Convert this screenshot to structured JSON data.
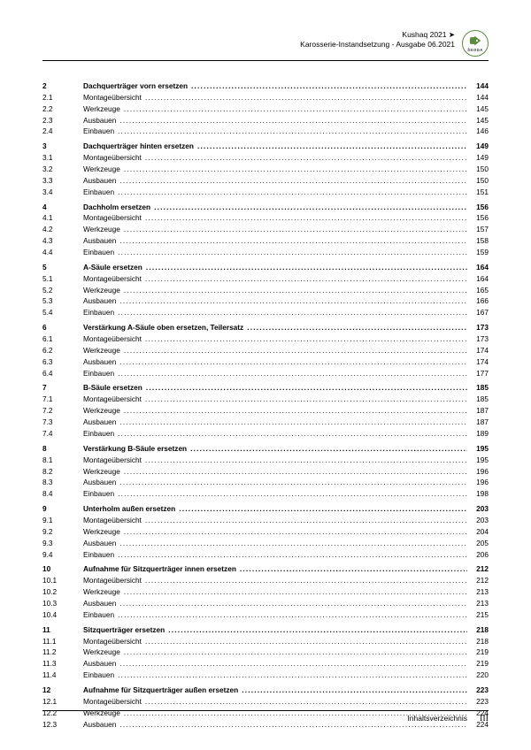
{
  "header": {
    "line1": "Kushaq 2021 ➤",
    "line2": "Karosserie-Instandsetzung - Ausgabe 06.2021",
    "brand": "ŠKODA"
  },
  "toc": [
    {
      "section": "2",
      "title": "Dachquerträger vorn ersetzen",
      "page": "144",
      "bold": true
    },
    {
      "section": "2.1",
      "title": "Montageübersicht",
      "page": "144"
    },
    {
      "section": "2.2",
      "title": "Werkzeuge",
      "page": "145"
    },
    {
      "section": "2.3",
      "title": "Ausbauen",
      "page": "145"
    },
    {
      "section": "2.4",
      "title": "Einbauen",
      "page": "146"
    },
    {
      "section": "3",
      "title": "Dachquerträger hinten ersetzen",
      "page": "149",
      "bold": true
    },
    {
      "section": "3.1",
      "title": "Montageübersicht",
      "page": "149"
    },
    {
      "section": "3.2",
      "title": "Werkzeuge",
      "page": "150"
    },
    {
      "section": "3.3",
      "title": "Ausbauen",
      "page": "150"
    },
    {
      "section": "3.4",
      "title": "Einbauen",
      "page": "151"
    },
    {
      "section": "4",
      "title": "Dachholm ersetzen",
      "page": "156",
      "bold": true
    },
    {
      "section": "4.1",
      "title": "Montageübersicht",
      "page": "156"
    },
    {
      "section": "4.2",
      "title": "Werkzeuge",
      "page": "157"
    },
    {
      "section": "4.3",
      "title": "Ausbauen",
      "page": "158"
    },
    {
      "section": "4.4",
      "title": "Einbauen",
      "page": "159"
    },
    {
      "section": "5",
      "title": "A-Säule ersetzen",
      "page": "164",
      "bold": true
    },
    {
      "section": "5.1",
      "title": "Montageübersicht",
      "page": "164"
    },
    {
      "section": "5.2",
      "title": "Werkzeuge",
      "page": "165"
    },
    {
      "section": "5.3",
      "title": "Ausbauen",
      "page": "166"
    },
    {
      "section": "5.4",
      "title": "Einbauen",
      "page": "167"
    },
    {
      "section": "6",
      "title": "Verstärkung A-Säule oben ersetzen, Teilersatz",
      "page": "173",
      "bold": true
    },
    {
      "section": "6.1",
      "title": "Montageübersicht",
      "page": "173"
    },
    {
      "section": "6.2",
      "title": "Werkzeuge",
      "page": "174"
    },
    {
      "section": "6.3",
      "title": "Ausbauen",
      "page": "174"
    },
    {
      "section": "6.4",
      "title": "Einbauen",
      "page": "177"
    },
    {
      "section": "7",
      "title": "B-Säule ersetzen",
      "page": "185",
      "bold": true
    },
    {
      "section": "7.1",
      "title": "Montageübersicht",
      "page": "185"
    },
    {
      "section": "7.2",
      "title": "Werkzeuge",
      "page": "187"
    },
    {
      "section": "7.3",
      "title": "Ausbauen",
      "page": "187"
    },
    {
      "section": "7.4",
      "title": "Einbauen",
      "page": "189"
    },
    {
      "section": "8",
      "title": "Verstärkung B-Säule ersetzen",
      "page": "195",
      "bold": true
    },
    {
      "section": "8.1",
      "title": "Montageübersicht",
      "page": "195"
    },
    {
      "section": "8.2",
      "title": "Werkzeuge",
      "page": "196"
    },
    {
      "section": "8.3",
      "title": "Ausbauen",
      "page": "196"
    },
    {
      "section": "8.4",
      "title": "Einbauen",
      "page": "198"
    },
    {
      "section": "9",
      "title": "Unterholm außen ersetzen",
      "page": "203",
      "bold": true
    },
    {
      "section": "9.1",
      "title": "Montageübersicht",
      "page": "203"
    },
    {
      "section": "9.2",
      "title": "Werkzeuge",
      "page": "204"
    },
    {
      "section": "9.3",
      "title": "Ausbauen",
      "page": "205"
    },
    {
      "section": "9.4",
      "title": "Einbauen",
      "page": "206"
    },
    {
      "section": "10",
      "title": "Aufnahme für Sitzquerträger innen ersetzen",
      "page": "212",
      "bold": true
    },
    {
      "section": "10.1",
      "title": "Montageübersicht",
      "page": "212"
    },
    {
      "section": "10.2",
      "title": "Werkzeuge",
      "page": "213"
    },
    {
      "section": "10.3",
      "title": "Ausbauen",
      "page": "213"
    },
    {
      "section": "10.4",
      "title": "Einbauen",
      "page": "215"
    },
    {
      "section": "11",
      "title": "Sitzquerträger ersetzen",
      "page": "218",
      "bold": true
    },
    {
      "section": "11.1",
      "title": "Montageübersicht",
      "page": "218"
    },
    {
      "section": "11.2",
      "title": "Werkzeuge",
      "page": "219"
    },
    {
      "section": "11.3",
      "title": "Ausbauen",
      "page": "219"
    },
    {
      "section": "11.4",
      "title": "Einbauen",
      "page": "220"
    },
    {
      "section": "12",
      "title": "Aufnahme für Sitzquerträger außen ersetzen",
      "page": "223",
      "bold": true
    },
    {
      "section": "12.1",
      "title": "Montageübersicht",
      "page": "223"
    },
    {
      "section": "12.2",
      "title": "Werkzeuge",
      "page": "224"
    },
    {
      "section": "12.3",
      "title": "Ausbauen",
      "page": "224"
    }
  ],
  "footer": {
    "label": "Inhaltsverzeichnis",
    "page_number": "III"
  },
  "colors": {
    "text": "#000000",
    "logo_ring": "#5a8a3e",
    "logo_fill": "#5a8a3e"
  }
}
